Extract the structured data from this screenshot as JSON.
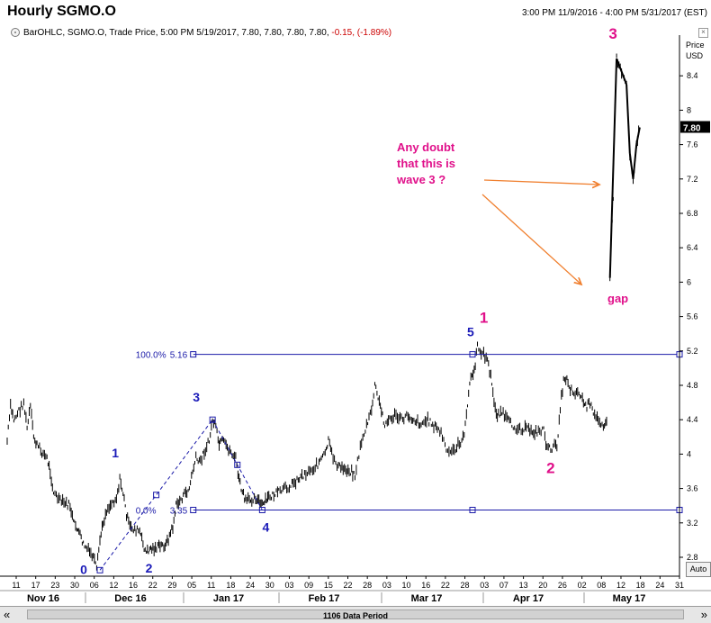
{
  "header": {
    "title": "Hourly SGMO.O",
    "range": "3:00 PM 11/9/2016 - 4:00 PM 5/31/2017 (EST)",
    "info_prefix": "BarOHLC, SGMO.O, Trade Price, 5:00 PM 5/19/2017, 7.80, 7.80, 7.80, 7.80, ",
    "info_change": "-0.15, (-1.89%)"
  },
  "axis": {
    "price_label": "Price",
    "currency_label": "USD",
    "last_price": "7.80",
    "auto_label": "Auto"
  },
  "scrollbar": {
    "label": "1106 Data Period"
  },
  "colors": {
    "bars": "#000000",
    "fib": "#1a1aa8",
    "blue_wave": "#1a1ab8",
    "magenta": "#e0108a",
    "arrow": "#f08030",
    "last_price_bg": "#000000"
  },
  "chart_data": {
    "type": "ohlc",
    "title": "Hourly SGMO.O",
    "ylim": [
      2.55,
      8.85
    ],
    "yticks": [
      2.8,
      3.2,
      3.6,
      4,
      4.4,
      4.8,
      5.2,
      5.6,
      6,
      6.4,
      6.8,
      7.2,
      7.6,
      8,
      8.4
    ],
    "ytick_labels": [
      "2.8",
      "3.2",
      "3.6",
      "4",
      "4.4",
      "4.8",
      "5.2",
      "5.6",
      "6",
      "6.4",
      "6.8",
      "7.2",
      "7.6",
      "8",
      "8.4"
    ],
    "x_day_ticks": [
      "11",
      "17",
      "23",
      "30",
      "06",
      "12",
      "16",
      "22",
      "29",
      "05",
      "11",
      "18",
      "24",
      "30",
      "03",
      "09",
      "15",
      "22",
      "28",
      "03",
      "10",
      "16",
      "22",
      "28",
      "03",
      "07",
      "13",
      "20",
      "26",
      "02",
      "08",
      "12",
      "18",
      "24",
      "31"
    ],
    "x_months": [
      "Nov 16",
      "Dec 16",
      "Jan 17",
      "Feb 17",
      "Mar 17",
      "Apr 17",
      "May 17"
    ],
    "price_path": [
      [
        "2016-11-09",
        4.15
      ],
      [
        "2016-11-10",
        4.55
      ],
      [
        "2016-11-11",
        4.4
      ],
      [
        "2016-11-14",
        4.6
      ],
      [
        "2016-11-15",
        4.3
      ],
      [
        "2016-11-16",
        4.55
      ],
      [
        "2016-11-17",
        4.2
      ],
      [
        "2016-11-18",
        4.1
      ],
      [
        "2016-11-21",
        3.95
      ],
      [
        "2016-11-22",
        3.8
      ],
      [
        "2016-11-23",
        3.55
      ],
      [
        "2016-11-25",
        3.45
      ],
      [
        "2016-11-28",
        3.4
      ],
      [
        "2016-11-29",
        3.2
      ],
      [
        "2016-11-30",
        3.15
      ],
      [
        "2016-12-01",
        3.05
      ],
      [
        "2016-12-02",
        2.95
      ],
      [
        "2016-12-05",
        2.8
      ],
      [
        "2016-12-06",
        2.65
      ],
      [
        "2016-12-07",
        3.0
      ],
      [
        "2016-12-08",
        3.2
      ],
      [
        "2016-12-09",
        3.35
      ],
      [
        "2016-12-12",
        3.5
      ],
      [
        "2016-12-13",
        3.7
      ],
      [
        "2016-12-14",
        3.55
      ],
      [
        "2016-12-15",
        3.3
      ],
      [
        "2016-12-16",
        3.15
      ],
      [
        "2016-12-19",
        3.1
      ],
      [
        "2016-12-20",
        2.95
      ],
      [
        "2016-12-21",
        2.85
      ],
      [
        "2016-12-22",
        2.9
      ],
      [
        "2016-12-23",
        2.9
      ],
      [
        "2016-12-27",
        2.95
      ],
      [
        "2016-12-28",
        3.05
      ],
      [
        "2016-12-29",
        3.15
      ],
      [
        "2016-12-30",
        3.4
      ],
      [
        "2017-01-03",
        3.6
      ],
      [
        "2017-01-04",
        3.8
      ],
      [
        "2017-01-05",
        3.95
      ],
      [
        "2017-01-06",
        3.9
      ],
      [
        "2017-01-09",
        4.15
      ],
      [
        "2017-01-10",
        4.4
      ],
      [
        "2017-01-11",
        4.3
      ],
      [
        "2017-01-12",
        4.1
      ],
      [
        "2017-01-13",
        4.15
      ],
      [
        "2017-01-17",
        3.95
      ],
      [
        "2017-01-18",
        3.7
      ],
      [
        "2017-01-19",
        3.55
      ],
      [
        "2017-01-20",
        3.45
      ],
      [
        "2017-01-23",
        3.5
      ],
      [
        "2017-01-24",
        3.45
      ],
      [
        "2017-01-25",
        3.4
      ],
      [
        "2017-01-26",
        3.45
      ],
      [
        "2017-01-27",
        3.5
      ],
      [
        "2017-01-30",
        3.55
      ],
      [
        "2017-02-01",
        3.6
      ],
      [
        "2017-02-03",
        3.65
      ],
      [
        "2017-02-06",
        3.75
      ],
      [
        "2017-02-08",
        3.8
      ],
      [
        "2017-02-10",
        3.85
      ],
      [
        "2017-02-13",
        4.0
      ],
      [
        "2017-02-14",
        4.15
      ],
      [
        "2017-02-15",
        4.0
      ],
      [
        "2017-02-17",
        3.85
      ],
      [
        "2017-02-21",
        3.8
      ],
      [
        "2017-02-22",
        3.75
      ],
      [
        "2017-02-24",
        4.15
      ],
      [
        "2017-02-27",
        4.5
      ],
      [
        "2017-02-28",
        4.8
      ],
      [
        "2017-03-01",
        4.65
      ],
      [
        "2017-03-02",
        4.5
      ],
      [
        "2017-03-03",
        4.35
      ],
      [
        "2017-03-06",
        4.45
      ],
      [
        "2017-03-08",
        4.4
      ],
      [
        "2017-03-10",
        4.45
      ],
      [
        "2017-03-14",
        4.35
      ],
      [
        "2017-03-16",
        4.4
      ],
      [
        "2017-03-20",
        4.25
      ],
      [
        "2017-03-22",
        4.0
      ],
      [
        "2017-03-24",
        4.05
      ],
      [
        "2017-03-27",
        4.2
      ],
      [
        "2017-03-28",
        4.6
      ],
      [
        "2017-03-29",
        4.9
      ],
      [
        "2017-03-30",
        4.95
      ],
      [
        "2017-03-31",
        5.25
      ],
      [
        "2017-04-03",
        5.1
      ],
      [
        "2017-04-04",
        4.9
      ],
      [
        "2017-04-05",
        4.6
      ],
      [
        "2017-04-06",
        4.45
      ],
      [
        "2017-04-07",
        4.5
      ],
      [
        "2017-04-10",
        4.35
      ],
      [
        "2017-04-12",
        4.3
      ],
      [
        "2017-04-14",
        4.3
      ],
      [
        "2017-04-18",
        4.25
      ],
      [
        "2017-04-20",
        4.3
      ],
      [
        "2017-04-21",
        4.05
      ],
      [
        "2017-04-24",
        4.1
      ],
      [
        "2017-04-25",
        4.55
      ],
      [
        "2017-04-26",
        4.85
      ],
      [
        "2017-04-27",
        4.9
      ],
      [
        "2017-04-28",
        4.75
      ],
      [
        "2017-05-01",
        4.7
      ],
      [
        "2017-05-02",
        4.6
      ],
      [
        "2017-05-03",
        4.55
      ],
      [
        "2017-05-04",
        4.6
      ],
      [
        "2017-05-05",
        4.45
      ],
      [
        "2017-05-08",
        4.35
      ],
      [
        "2017-05-09",
        4.4
      ],
      [
        "2017-05-10",
        6.05
      ],
      [
        "2017-05-11",
        7.0
      ],
      [
        "2017-05-12",
        8.6
      ],
      [
        "2017-05-15",
        8.3
      ],
      [
        "2017-05-16",
        7.5
      ],
      [
        "2017-05-17",
        7.2
      ],
      [
        "2017-05-18",
        7.6
      ],
      [
        "2017-05-19",
        7.8
      ]
    ],
    "fib_retracement": {
      "start_date": "2017-01-02",
      "levels": [
        {
          "label_pct": "100.0%",
          "label_val": "5.16",
          "value": 5.16
        },
        {
          "label_pct": "0.0%",
          "label_val": "3.35",
          "value": 3.35
        }
      ]
    },
    "wave_markers": [
      {
        "label": "0",
        "date": "2016-12-07",
        "value": 2.65,
        "color": "blue"
      },
      {
        "label": "1",
        "date": "2016-12-13",
        "value": 3.7,
        "color": "blue"
      },
      {
        "label": "2",
        "date": "2016-12-21",
        "value": 2.85,
        "color": "blue"
      },
      {
        "label": "3",
        "date": "2017-01-10",
        "value": 4.4,
        "color": "blue"
      },
      {
        "label": "4",
        "date": "2017-01-25",
        "value": 3.35,
        "color": "blue"
      },
      {
        "label": "5",
        "date": "2017-03-30",
        "value": 5.16,
        "color": "blue"
      },
      {
        "label": "1",
        "date": "2017-04-03",
        "value": 5.3,
        "color": "magenta"
      },
      {
        "label": "2",
        "date": "2017-04-21",
        "value": 4.05,
        "color": "magenta"
      },
      {
        "label": "3",
        "date": "2017-05-12",
        "value": 8.6,
        "color": "magenta"
      }
    ],
    "annotations": [
      {
        "text": "Any doubt",
        "kind": "callout"
      },
      {
        "text": "that this is",
        "kind": "callout"
      },
      {
        "text": "wave 3 ?",
        "kind": "callout"
      },
      {
        "text": "gap",
        "kind": "gap"
      }
    ],
    "last_price": 7.8
  }
}
